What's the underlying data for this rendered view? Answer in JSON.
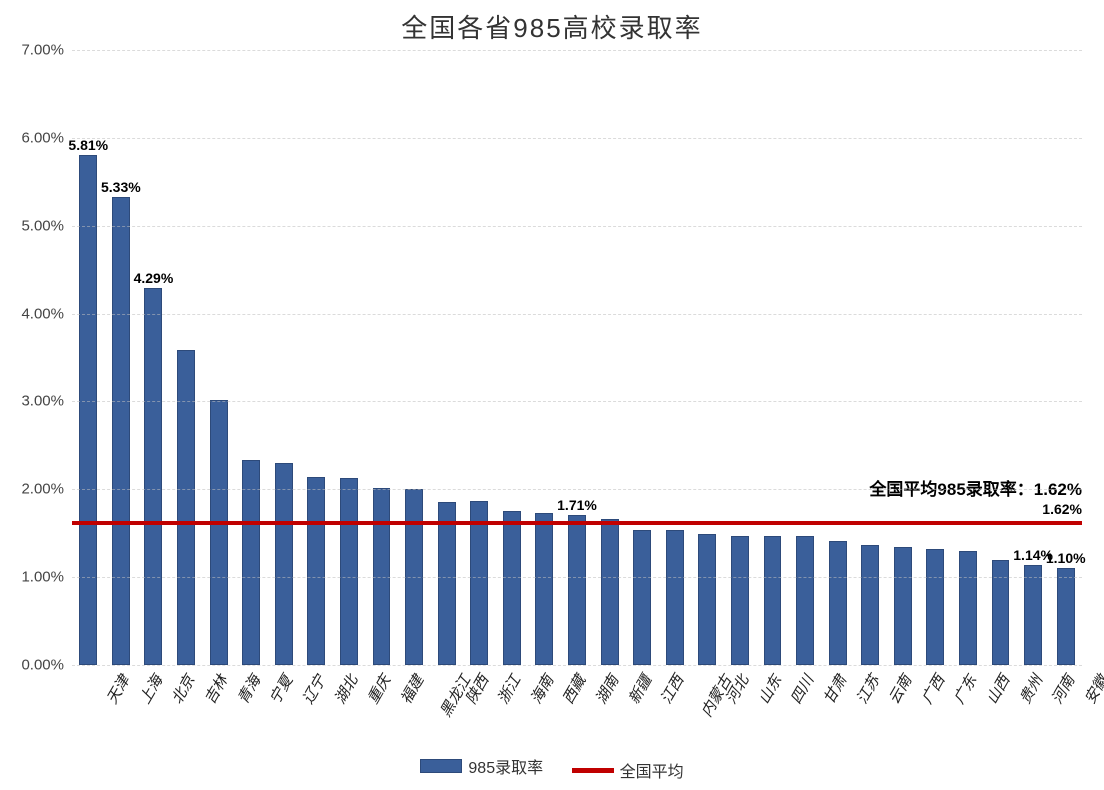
{
  "chart": {
    "type": "bar",
    "title": "全国各省985高校录取率",
    "title_fontsize": 26,
    "background_color": "#ffffff",
    "grid_color": "#bfbfbf",
    "bar_color": "#3a5f9a",
    "bar_border_color": "#2d4a7a",
    "avg_line_color": "#c00000",
    "bar_width_ratio": 0.55,
    "y": {
      "min": 0.0,
      "max": 7.0,
      "format": "percent-2dp",
      "ticks": [
        0.0,
        1.0,
        2.0,
        3.0,
        4.0,
        5.0,
        6.0,
        7.0
      ],
      "tick_labels": [
        "0.00%",
        "1.00%",
        "2.00%",
        "3.00%",
        "4.00%",
        "5.00%",
        "6.00%",
        "7.00%"
      ]
    },
    "categories": [
      "天津",
      "上海",
      "北京",
      "吉林",
      "青海",
      "宁夏",
      "辽宁",
      "湖北",
      "重庆",
      "福建",
      "黑龙江",
      "陕西",
      "浙江",
      "海南",
      "西藏",
      "湖南",
      "新疆",
      "江西",
      "内蒙古",
      "河北",
      "山东",
      "四川",
      "甘肃",
      "江苏",
      "云南",
      "广西",
      "广东",
      "山西",
      "贵州",
      "河南",
      "安徽"
    ],
    "values": [
      5.81,
      5.33,
      4.29,
      3.58,
      3.02,
      2.33,
      2.3,
      2.14,
      2.13,
      2.01,
      2.0,
      1.86,
      1.87,
      1.75,
      1.73,
      1.71,
      1.66,
      1.54,
      1.54,
      1.49,
      1.47,
      1.47,
      1.47,
      1.41,
      1.37,
      1.34,
      1.32,
      1.3,
      1.19,
      1.14,
      1.1
    ],
    "data_labels": {
      "0": "5.81%",
      "1": "5.33%",
      "2": "4.29%",
      "15": "1.71%",
      "29": "1.14%",
      "30": "1.10%"
    },
    "average": {
      "value": 1.62,
      "right_label": "1.62%",
      "title_text": "全国平均985录取率：1.62%"
    },
    "legend": {
      "bar": "985录取率",
      "line": "全国平均"
    },
    "label_fontsize": 14,
    "tick_fontsize": 15,
    "x_label_rotation_deg": -60
  }
}
